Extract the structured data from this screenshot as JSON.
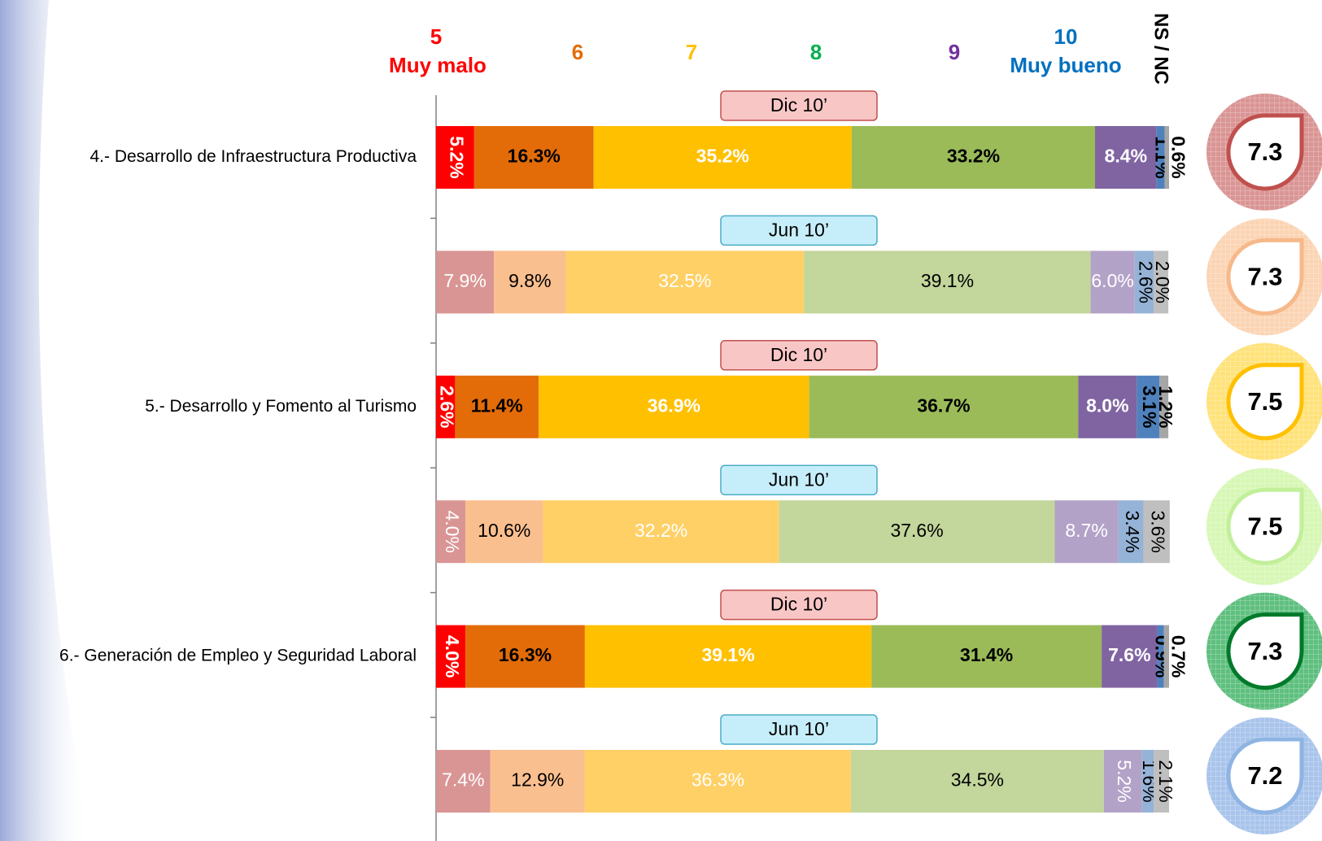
{
  "chart_data": {
    "type": "stacked_bar_horizontal",
    "xlim": [
      0,
      100
    ],
    "groups": [
      "4.- Desarrollo de Infraestructura Productiva",
      "5.- Desarrollo y Fomento al Turismo",
      "6.- Generación de Empleo y Seguridad Laboral"
    ],
    "categories": [
      "Dic 10’",
      "Jun 10’",
      "Dic 10’",
      "Jun 10’",
      "Dic 10’",
      "Jun 10’"
    ],
    "series": [
      {
        "name": "5",
        "sublabel": "Muy malo",
        "header_color": "#ff0000",
        "color": "#ff0000",
        "light_color": "#d99594",
        "label_color": "#ffffff",
        "values": [
          5.2,
          7.9,
          2.6,
          4.0,
          4.0,
          7.4
        ],
        "value_labels": [
          "5.2%",
          "7.9%",
          "2.6%",
          "4.0%",
          "4.0%",
          "7.4%"
        ]
      },
      {
        "name": "6",
        "header_color": "#e36c09",
        "color": "#e36c09",
        "light_color": "#fabf8f",
        "label_color": "#000000",
        "values": [
          16.3,
          9.8,
          11.4,
          10.6,
          16.3,
          12.9
        ],
        "value_labels": [
          "16.3%",
          "9.8%",
          "11.4%",
          "10.6%",
          "16.3%",
          "12.9%"
        ]
      },
      {
        "name": "7",
        "header_color": "#ffc000",
        "color": "#ffc000",
        "light_color": "#ffd066",
        "label_color": "#ffffff",
        "values": [
          35.2,
          32.5,
          36.9,
          32.2,
          39.1,
          36.3
        ],
        "value_labels": [
          "35.2%",
          "32.5%",
          "36.9%",
          "32.2%",
          "39.1%",
          "36.3%"
        ]
      },
      {
        "name": "8",
        "header_color": "#00b050",
        "color": "#9bbb59",
        "light_color": "#c3d69b",
        "label_color": "#000000",
        "values": [
          33.2,
          39.1,
          36.7,
          37.6,
          31.4,
          34.5
        ],
        "value_labels": [
          "33.2%",
          "39.1%",
          "36.7%",
          "37.6%",
          "31.4%",
          "34.5%"
        ]
      },
      {
        "name": "9",
        "header_color": "#7030a0",
        "color": "#8064a2",
        "light_color": "#b3a2c7",
        "label_color": "#ffffff",
        "values": [
          8.4,
          6.0,
          8.0,
          8.7,
          7.6,
          5.2
        ],
        "value_labels": [
          "8.4%",
          "6.0%",
          "8.0%",
          "8.7%",
          "7.6%",
          "5.2%"
        ]
      },
      {
        "name": "10",
        "sublabel": "Muy bueno",
        "header_color": "#0070c0",
        "color": "#4f81bd",
        "light_color": "#95b3d7",
        "label_color": "#000000",
        "values": [
          1.1,
          2.6,
          3.1,
          3.4,
          0.9,
          1.6
        ],
        "value_labels": [
          "1.1%",
          "2.6%",
          "3.1%",
          "3.4%",
          "0.9%",
          "1.6%"
        ]
      },
      {
        "name": "NS / NC",
        "header_color": "#000000",
        "color": "#a6a6a6",
        "light_color": "#bfbfbf",
        "label_color": "#000000",
        "values": [
          0.6,
          2.0,
          1.2,
          3.6,
          0.7,
          2.1
        ],
        "value_labels": [
          "0.6%",
          "2.0%",
          "1.2%",
          "3.6%",
          "0.7%",
          "2.1%"
        ]
      }
    ],
    "scores": [
      7.3,
      7.3,
      7.5,
      7.5,
      7.3,
      7.2
    ],
    "score_colors": [
      "#d99594",
      "#fbd4b4",
      "#ffe27a",
      "#d7f7b5",
      "#5fbf7f",
      "#a9c4eb"
    ],
    "score_ring_colors": [
      "#c0504d",
      "#f7b98a",
      "#ffc000",
      "#c2ef9a",
      "#007a2a",
      "#8eb4e3"
    ]
  }
}
